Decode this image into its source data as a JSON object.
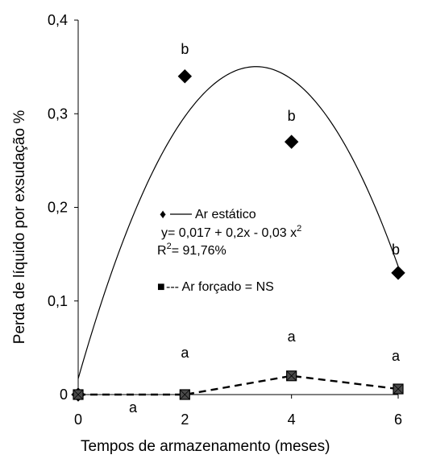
{
  "chart_data": {
    "type": "scatter",
    "xlabel": "Tempos de armazenamento  (meses)",
    "ylabel": "Perda de líquido por exsudação %",
    "xlim": [
      0,
      6
    ],
    "ylim": [
      0,
      0.4
    ],
    "x_ticks": [
      "0",
      "2",
      "4",
      "6"
    ],
    "y_ticks": [
      "0",
      "0,1",
      "0,2",
      "0,3",
      "0,4"
    ],
    "series": [
      {
        "marker": "diamond",
        "line": "solid",
        "x": [
          0,
          2,
          4,
          6
        ],
        "y": [
          0,
          0.34,
          0.27,
          0.13
        ],
        "labels": [
          "",
          "b",
          "b",
          "b"
        ],
        "fit": {
          "a": 0.017,
          "b": 0.2,
          "c": -0.03,
          "x_range": [
            0,
            6
          ]
        }
      },
      {
        "marker": "square",
        "line": "dashed",
        "x": [
          0,
          2,
          4,
          6
        ],
        "y": [
          0,
          0,
          0.02,
          0.006
        ],
        "labels": [
          "a",
          "a",
          "a",
          "a"
        ]
      }
    ],
    "legend": {
      "static_symbol": "♦",
      "static_name": "Ar estático",
      "equation_prefix": "y= 0,017 + 0,2x - 0,03 x",
      "equation_sup": "2",
      "r2_prefix": "R",
      "r2_sup": "2",
      "r2_value": "= 91,76%",
      "forced_symbol": "■",
      "forced_text": "--- Ar forçado = NS"
    },
    "colors": {
      "axis": "#000000",
      "line": "#000000",
      "marker_fill_static": "#000000",
      "marker_fill_forced": "#4a4a4a"
    }
  }
}
